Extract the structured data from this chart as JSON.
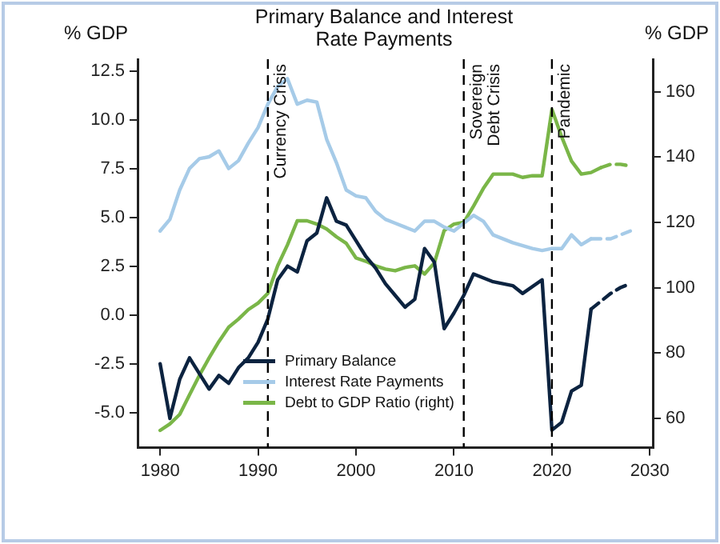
{
  "chart_data": {
    "type": "line",
    "title": "Primary Balance and Interest Rate Payments",
    "ylabel": "% GDP",
    "y2label": "% GDP",
    "xlim": [
      1977.7,
      2030.3
    ],
    "xticks": [
      1980,
      1990,
      2000,
      2010,
      2020,
      2030
    ],
    "ylim": [
      -6.8,
      13.1
    ],
    "yticks": [
      {
        "value": -5,
        "label": "-5.0"
      },
      {
        "value": -2.5,
        "label": "-2.5"
      },
      {
        "value": 0,
        "label": "0.0"
      },
      {
        "value": 2.5,
        "label": "2.5"
      },
      {
        "value": 5,
        "label": "5.0"
      },
      {
        "value": 7.5,
        "label": "7.5"
      },
      {
        "value": 10,
        "label": "10.0"
      },
      {
        "value": 12.5,
        "label": "12.5"
      }
    ],
    "y2lim": [
      51,
      170
    ],
    "y2ticks": [
      60,
      80,
      100,
      120,
      140,
      160
    ],
    "grid": false,
    "legend": "bottom",
    "marker": "none",
    "ref_lines": [
      {
        "axis": "x",
        "value": 1991,
        "label": "Currency Crisis",
        "line_style": "dashed",
        "color": "#000000"
      },
      {
        "axis": "x",
        "value": 2011,
        "label": "Sovereign Debt Crisis",
        "line_style": "dashed",
        "color": "#000000"
      },
      {
        "axis": "x",
        "value": 2020,
        "label": "Pandemic",
        "line_style": "dashed",
        "color": "#000000"
      }
    ],
    "series": [
      {
        "name": "Primary Balance",
        "color": "#0c2340",
        "x": [
          1980,
          1981,
          1982,
          1983,
          1984,
          1985,
          1986,
          1987,
          1988,
          1989,
          1990,
          1991,
          1992,
          1993,
          1994,
          1995,
          1996,
          1997,
          1998,
          1999,
          2000,
          2001,
          2002,
          2003,
          2004,
          2005,
          2006,
          2007,
          2008,
          2009,
          2010,
          2011,
          2012,
          2014,
          2016,
          2017,
          2019,
          2020,
          2021,
          2022,
          2023,
          2024
        ],
        "values": [
          -2.5,
          -5.3,
          -3.3,
          -2.2,
          -3.0,
          -3.8,
          -3.1,
          -3.5,
          -2.7,
          -2.2,
          -1.4,
          -0.2,
          1.8,
          2.5,
          2.2,
          3.8,
          4.2,
          6.0,
          4.8,
          4.6,
          3.8,
          3.0,
          2.4,
          1.6,
          1.0,
          0.4,
          0.8,
          3.4,
          2.7,
          -0.7,
          0.1,
          1.0,
          2.1,
          1.7,
          1.5,
          1.1,
          1.8,
          -5.9,
          -5.5,
          -3.9,
          -3.6,
          0.3
        ]
      },
      {
        "name": "Interest Rate Payments",
        "color": "#a6cbe8",
        "x": [
          1980,
          1981,
          1982,
          1983,
          1984,
          1985,
          1986,
          1987,
          1988,
          1989,
          1990,
          1991,
          1992,
          1993,
          1994,
          1995,
          1996,
          1997,
          1998,
          1999,
          2000,
          2001,
          2002,
          2003,
          2004,
          2005,
          2006,
          2007,
          2008,
          2009,
          2010,
          2011,
          2012,
          2013,
          2014,
          2016,
          2018,
          2019,
          2020,
          2021,
          2022,
          2023,
          2024
        ],
        "values": [
          4.3,
          4.9,
          6.4,
          7.5,
          8.0,
          8.1,
          8.4,
          7.5,
          7.9,
          8.8,
          9.6,
          10.8,
          11.7,
          12.1,
          10.8,
          11.0,
          10.9,
          9.0,
          7.8,
          6.4,
          6.1,
          6.0,
          5.3,
          4.9,
          4.7,
          4.5,
          4.3,
          4.8,
          4.8,
          4.5,
          4.3,
          4.7,
          5.1,
          4.8,
          4.1,
          3.7,
          3.4,
          3.3,
          3.4,
          3.4,
          4.1,
          3.6,
          3.9
        ]
      },
      {
        "name": "Debt to GDP Ratio (right)",
        "color": "#7ab648",
        "axis": "y2",
        "x": [
          1980,
          1981,
          1982,
          1983,
          1984,
          1985,
          1986,
          1987,
          1988,
          1989,
          1990,
          1991,
          1992,
          1993,
          1994,
          1995,
          1996,
          1997,
          1998,
          1999,
          2000,
          2001,
          2002,
          2003,
          2004,
          2005,
          2006,
          2007,
          2008,
          2009,
          2010,
          2011,
          2012,
          2013,
          2014,
          2016,
          2017,
          2018,
          2019,
          2020,
          2021,
          2022,
          2023,
          2024,
          2025
        ],
        "values": [
          56.3,
          58.3,
          61.2,
          67.2,
          73.1,
          78.5,
          83.5,
          87.9,
          90.4,
          93.3,
          95.3,
          98.3,
          106.7,
          113.1,
          120.5,
          120.5,
          119.5,
          118.0,
          115.6,
          113.6,
          109.1,
          108.1,
          106.7,
          105.7,
          105.2,
          106.2,
          106.7,
          104.2,
          107.6,
          117.5,
          119.5,
          120.0,
          125.0,
          130.4,
          134.8,
          134.8,
          133.8,
          134.3,
          134.3,
          154.6,
          146.2,
          138.8,
          134.8,
          135.3,
          136.8
        ]
      },
      {
        "color": "#0c2340",
        "line_style": "dashed",
        "x": [
          2024,
          2025,
          2026,
          2027,
          2028
        ],
        "values": [
          0.3,
          0.7,
          1.1,
          1.4,
          1.6
        ]
      },
      {
        "color": "#a6cbe8",
        "line_style": "dashed",
        "x": [
          2024,
          2025,
          2026,
          2027,
          2028
        ],
        "values": [
          3.9,
          3.9,
          3.9,
          4.1,
          4.3
        ]
      },
      {
        "color": "#7ab648",
        "line_style": "dashed",
        "axis": "y2",
        "x": [
          2025,
          2026,
          2027,
          2028
        ],
        "values": [
          136.8,
          137.8,
          137.8,
          137.3
        ]
      }
    ]
  }
}
